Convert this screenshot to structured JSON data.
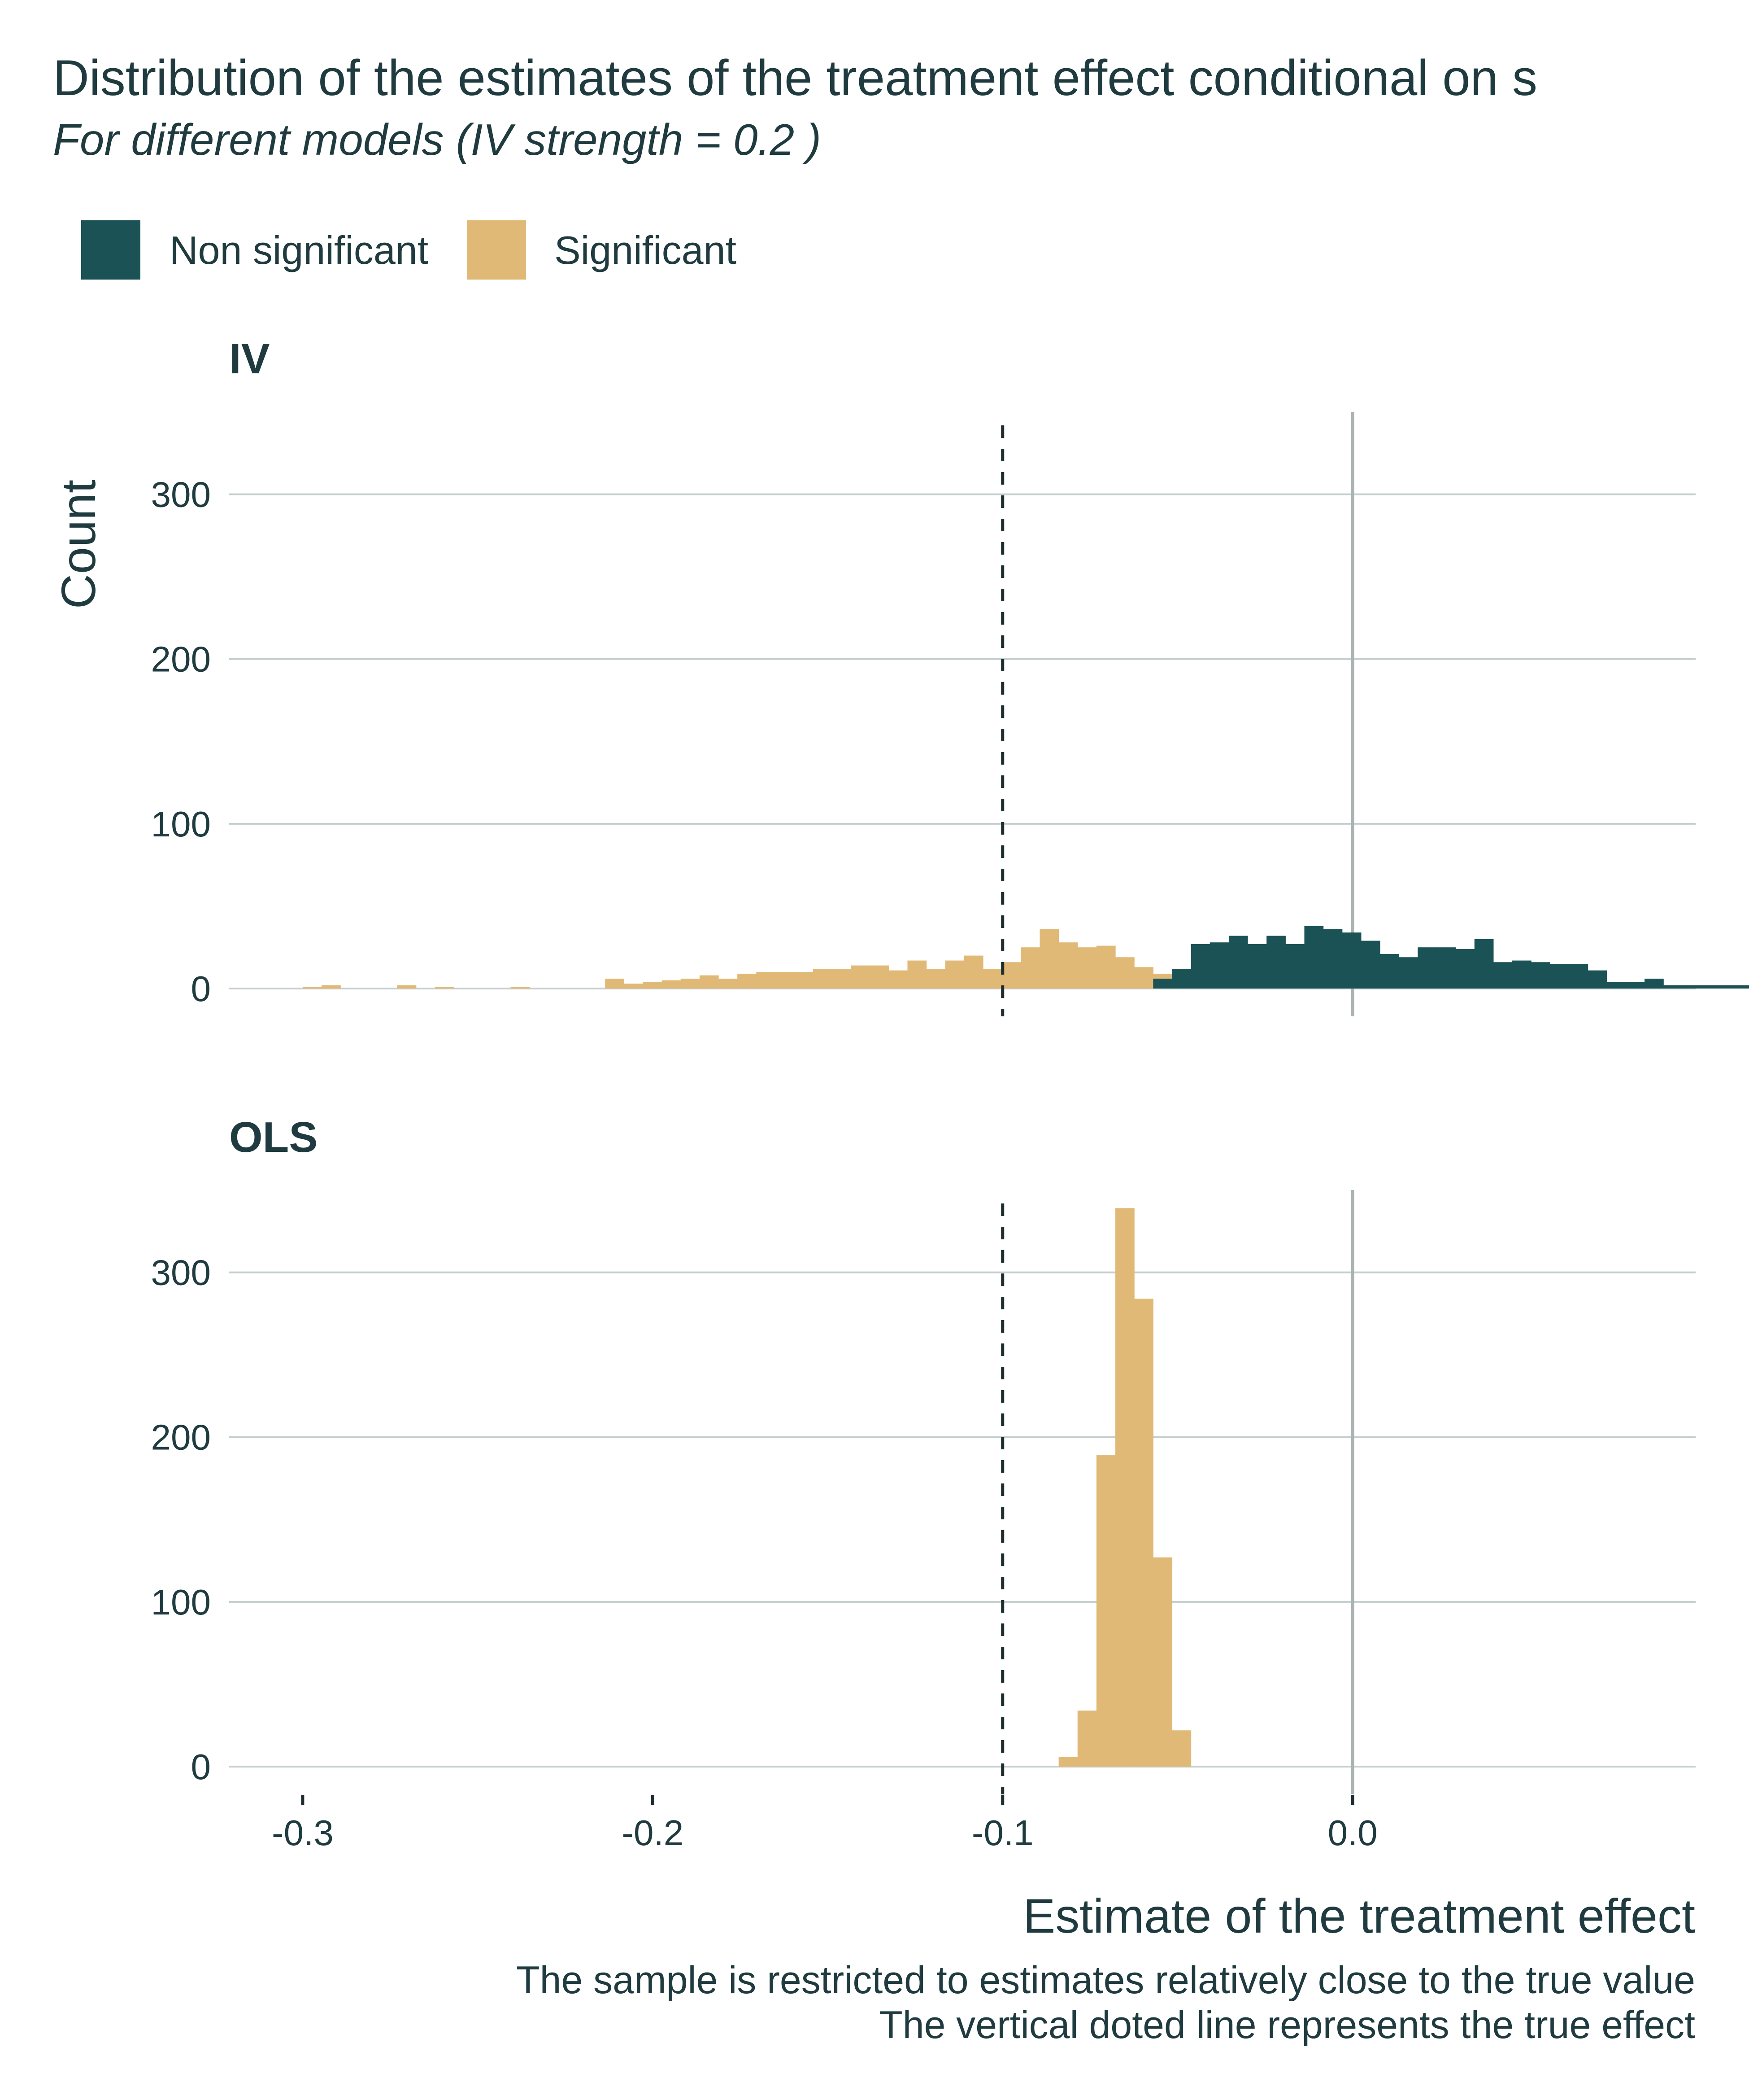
{
  "chart_data": {
    "type": "bar",
    "title": "Distribution of the estimates of the treatment effect conditional on s",
    "subtitle": "For different models (IV strength = 0.2 )",
    "xlabel": "Estimate of the treatment effect",
    "ylabel": "Count",
    "caption": [
      "The sample is restricted to estimates relatively close to the true value",
      "The vertical doted line represents the true effect"
    ],
    "xlim": [
      -0.321,
      0.098
    ],
    "ylim": [
      0,
      350
    ],
    "x_ticks": [
      "-0.3",
      "-0.2",
      "-0.1",
      "0.0"
    ],
    "x_tick_values": [
      -0.3,
      -0.2,
      -0.1,
      0.0
    ],
    "y_ticks": [
      "0",
      "100",
      "200",
      "300"
    ],
    "y_tick_values": [
      0,
      100,
      200,
      300
    ],
    "true_effect": -0.1,
    "reference_line": 0.0,
    "bin_width": 0.0054,
    "legend_position": "top-left",
    "legend": [
      {
        "name": "Non significant",
        "color": "#1b5256"
      },
      {
        "name": "Significant",
        "color": "#e0b977"
      }
    ],
    "panels": [
      {
        "name": "IV",
        "bin_start": -0.3,
        "significant": [
          1,
          2,
          0,
          0,
          0,
          2,
          0,
          1,
          0,
          0,
          0,
          1,
          0,
          0,
          0,
          0,
          6,
          3,
          4,
          5,
          6,
          8,
          6,
          9,
          10,
          10,
          10,
          12,
          12,
          14,
          14,
          11,
          17,
          12,
          17,
          20,
          12,
          16,
          25,
          36,
          28,
          25,
          26,
          19,
          13,
          9,
          6,
          0
        ],
        "non_significant": [
          0,
          0,
          0,
          0,
          0,
          0,
          0,
          0,
          0,
          0,
          0,
          0,
          0,
          0,
          0,
          0,
          0,
          0,
          0,
          0,
          0,
          0,
          0,
          0,
          0,
          0,
          0,
          0,
          0,
          0,
          0,
          0,
          0,
          0,
          0,
          0,
          0,
          0,
          0,
          0,
          0,
          0,
          0,
          0,
          0,
          6,
          12,
          27,
          28,
          32,
          27,
          32,
          27,
          38,
          36,
          34,
          29,
          21,
          19,
          25,
          25,
          24,
          30,
          16,
          17,
          16,
          15,
          15,
          11,
          4,
          4,
          6,
          2,
          2,
          2,
          2,
          2,
          0,
          0,
          1,
          1,
          2,
          2,
          2
        ]
      },
      {
        "name": "OLS",
        "bin_start": -0.3,
        "significant": [
          0,
          0,
          0,
          0,
          0,
          0,
          0,
          0,
          0,
          0,
          0,
          0,
          0,
          0,
          0,
          0,
          0,
          0,
          0,
          0,
          0,
          0,
          0,
          0,
          0,
          0,
          0,
          0,
          0,
          0,
          0,
          0,
          0,
          0,
          0,
          0,
          0,
          0,
          0,
          0,
          6,
          34,
          189,
          339,
          284,
          127,
          22
        ],
        "non_significant": []
      }
    ]
  }
}
